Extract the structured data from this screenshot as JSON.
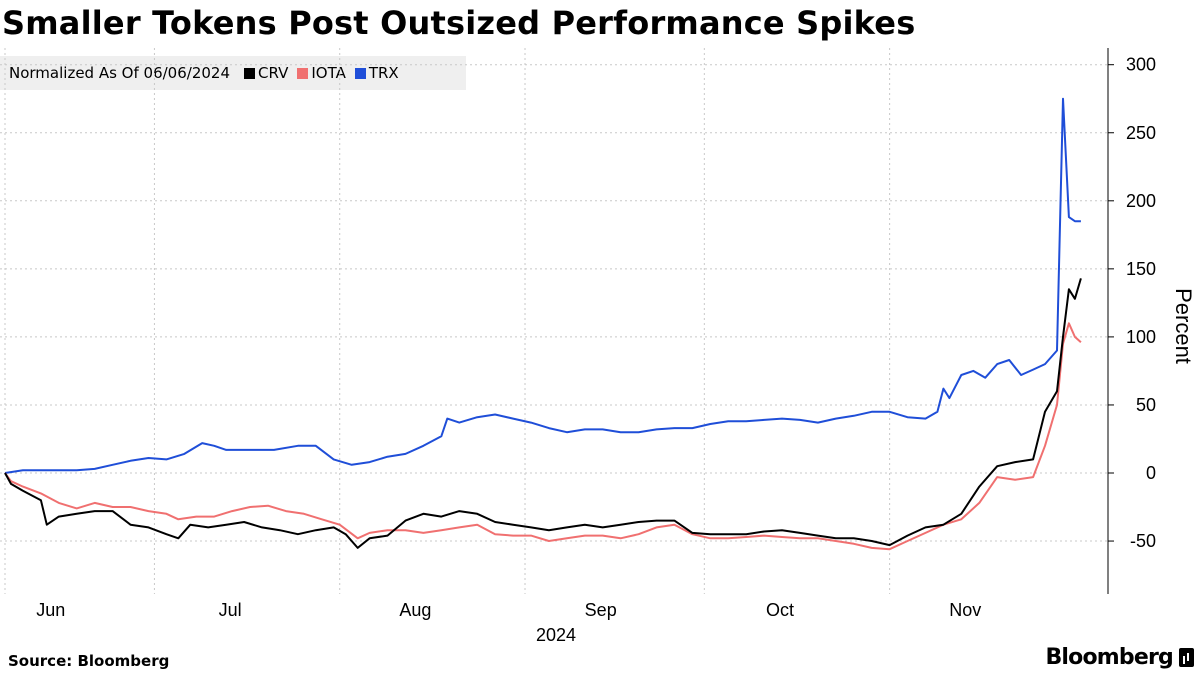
{
  "chart_data": {
    "type": "line",
    "title": "Smaller Tokens Post Outsized Performance Spikes",
    "subtitle": "Normalized As Of 06/06/2024",
    "ylabel": "Percent",
    "ylim": [
      -90,
      310
    ],
    "yticks": [
      -50,
      0,
      50,
      100,
      150,
      200,
      250,
      300
    ],
    "xlim": [
      "2024-06-06",
      "2024-11-27"
    ],
    "month_ticks": [
      {
        "label": "Jun",
        "date": "2024-06-15"
      },
      {
        "label": "Jul",
        "date": "2024-07-15"
      },
      {
        "label": "Aug",
        "date": "2024-08-15"
      },
      {
        "label": "Sep",
        "date": "2024-09-15"
      },
      {
        "label": "Oct",
        "date": "2024-10-15"
      },
      {
        "label": "Nov",
        "date": "2024-11-15"
      }
    ],
    "gridlines": [
      "2024-06-06",
      "2024-07-01",
      "2024-08-01",
      "2024-09-01",
      "2024-10-01",
      "2024-11-01"
    ],
    "year_label": "2024",
    "grid": true,
    "series": [
      {
        "name": "TRX",
        "color": "#1f4ed8",
        "points": [
          [
            "2024-06-06",
            0
          ],
          [
            "2024-06-09",
            2
          ],
          [
            "2024-06-12",
            2
          ],
          [
            "2024-06-15",
            2
          ],
          [
            "2024-06-18",
            2
          ],
          [
            "2024-06-21",
            3
          ],
          [
            "2024-06-24",
            6
          ],
          [
            "2024-06-27",
            9
          ],
          [
            "2024-06-30",
            11
          ],
          [
            "2024-07-03",
            10
          ],
          [
            "2024-07-06",
            14
          ],
          [
            "2024-07-09",
            22
          ],
          [
            "2024-07-11",
            20
          ],
          [
            "2024-07-13",
            17
          ],
          [
            "2024-07-17",
            17
          ],
          [
            "2024-07-21",
            17
          ],
          [
            "2024-07-25",
            20
          ],
          [
            "2024-07-28",
            20
          ],
          [
            "2024-07-31",
            10
          ],
          [
            "2024-08-03",
            6
          ],
          [
            "2024-08-06",
            8
          ],
          [
            "2024-08-09",
            12
          ],
          [
            "2024-08-12",
            14
          ],
          [
            "2024-08-15",
            20
          ],
          [
            "2024-08-18",
            27
          ],
          [
            "2024-08-19",
            40
          ],
          [
            "2024-08-21",
            37
          ],
          [
            "2024-08-24",
            41
          ],
          [
            "2024-08-27",
            43
          ],
          [
            "2024-08-30",
            40
          ],
          [
            "2024-09-02",
            37
          ],
          [
            "2024-09-05",
            33
          ],
          [
            "2024-09-08",
            30
          ],
          [
            "2024-09-11",
            32
          ],
          [
            "2024-09-14",
            32
          ],
          [
            "2024-09-17",
            30
          ],
          [
            "2024-09-20",
            30
          ],
          [
            "2024-09-23",
            32
          ],
          [
            "2024-09-26",
            33
          ],
          [
            "2024-09-29",
            33
          ],
          [
            "2024-10-02",
            36
          ],
          [
            "2024-10-05",
            38
          ],
          [
            "2024-10-08",
            38
          ],
          [
            "2024-10-11",
            39
          ],
          [
            "2024-10-14",
            40
          ],
          [
            "2024-10-17",
            39
          ],
          [
            "2024-10-20",
            37
          ],
          [
            "2024-10-23",
            40
          ],
          [
            "2024-10-26",
            42
          ],
          [
            "2024-10-29",
            45
          ],
          [
            "2024-11-01",
            45
          ],
          [
            "2024-11-04",
            41
          ],
          [
            "2024-11-07",
            40
          ],
          [
            "2024-11-09",
            45
          ],
          [
            "2024-11-10",
            62
          ],
          [
            "2024-11-11",
            55
          ],
          [
            "2024-11-13",
            72
          ],
          [
            "2024-11-15",
            75
          ],
          [
            "2024-11-17",
            70
          ],
          [
            "2024-11-19",
            80
          ],
          [
            "2024-11-21",
            83
          ],
          [
            "2024-11-23",
            72
          ],
          [
            "2024-11-25",
            76
          ],
          [
            "2024-11-27",
            80
          ],
          [
            "2024-11-29",
            90
          ],
          [
            "2024-11-30",
            275
          ],
          [
            "2024-12-01",
            188
          ],
          [
            "2024-12-02",
            185
          ],
          [
            "2024-12-03",
            185
          ]
        ]
      },
      {
        "name": "CRV",
        "color": "#000000",
        "points": [
          [
            "2024-06-06",
            0
          ],
          [
            "2024-06-07",
            -8
          ],
          [
            "2024-06-09",
            -13
          ],
          [
            "2024-06-12",
            -20
          ],
          [
            "2024-06-13",
            -38
          ],
          [
            "2024-06-15",
            -32
          ],
          [
            "2024-06-18",
            -30
          ],
          [
            "2024-06-21",
            -28
          ],
          [
            "2024-06-24",
            -28
          ],
          [
            "2024-06-27",
            -38
          ],
          [
            "2024-06-30",
            -40
          ],
          [
            "2024-07-03",
            -45
          ],
          [
            "2024-07-05",
            -48
          ],
          [
            "2024-07-07",
            -38
          ],
          [
            "2024-07-10",
            -40
          ],
          [
            "2024-07-13",
            -38
          ],
          [
            "2024-07-16",
            -36
          ],
          [
            "2024-07-19",
            -40
          ],
          [
            "2024-07-22",
            -42
          ],
          [
            "2024-07-25",
            -45
          ],
          [
            "2024-07-28",
            -42
          ],
          [
            "2024-07-31",
            -40
          ],
          [
            "2024-08-02",
            -45
          ],
          [
            "2024-08-04",
            -55
          ],
          [
            "2024-08-06",
            -48
          ],
          [
            "2024-08-09",
            -46
          ],
          [
            "2024-08-12",
            -35
          ],
          [
            "2024-08-15",
            -30
          ],
          [
            "2024-08-18",
            -32
          ],
          [
            "2024-08-21",
            -28
          ],
          [
            "2024-08-24",
            -30
          ],
          [
            "2024-08-27",
            -36
          ],
          [
            "2024-08-30",
            -38
          ],
          [
            "2024-09-02",
            -40
          ],
          [
            "2024-09-05",
            -42
          ],
          [
            "2024-09-08",
            -40
          ],
          [
            "2024-09-11",
            -38
          ],
          [
            "2024-09-14",
            -40
          ],
          [
            "2024-09-17",
            -38
          ],
          [
            "2024-09-20",
            -36
          ],
          [
            "2024-09-23",
            -35
          ],
          [
            "2024-09-26",
            -35
          ],
          [
            "2024-09-29",
            -44
          ],
          [
            "2024-10-02",
            -45
          ],
          [
            "2024-10-05",
            -45
          ],
          [
            "2024-10-08",
            -45
          ],
          [
            "2024-10-11",
            -43
          ],
          [
            "2024-10-14",
            -42
          ],
          [
            "2024-10-17",
            -44
          ],
          [
            "2024-10-20",
            -46
          ],
          [
            "2024-10-23",
            -48
          ],
          [
            "2024-10-26",
            -48
          ],
          [
            "2024-10-29",
            -50
          ],
          [
            "2024-11-01",
            -53
          ],
          [
            "2024-11-04",
            -46
          ],
          [
            "2024-11-07",
            -40
          ],
          [
            "2024-11-10",
            -38
          ],
          [
            "2024-11-13",
            -30
          ],
          [
            "2024-11-16",
            -10
          ],
          [
            "2024-11-19",
            5
          ],
          [
            "2024-11-22",
            8
          ],
          [
            "2024-11-25",
            10
          ],
          [
            "2024-11-27",
            45
          ],
          [
            "2024-11-29",
            60
          ],
          [
            "2024-11-30",
            100
          ],
          [
            "2024-12-01",
            135
          ],
          [
            "2024-12-02",
            128
          ],
          [
            "2024-12-03",
            143
          ]
        ]
      },
      {
        "name": "IOTA",
        "color": "#f07070",
        "points": [
          [
            "2024-06-06",
            0
          ],
          [
            "2024-06-07",
            -6
          ],
          [
            "2024-06-09",
            -10
          ],
          [
            "2024-06-12",
            -15
          ],
          [
            "2024-06-15",
            -22
          ],
          [
            "2024-06-18",
            -26
          ],
          [
            "2024-06-21",
            -22
          ],
          [
            "2024-06-24",
            -25
          ],
          [
            "2024-06-27",
            -25
          ],
          [
            "2024-06-30",
            -28
          ],
          [
            "2024-07-03",
            -30
          ],
          [
            "2024-07-05",
            -34
          ],
          [
            "2024-07-08",
            -32
          ],
          [
            "2024-07-11",
            -32
          ],
          [
            "2024-07-14",
            -28
          ],
          [
            "2024-07-17",
            -25
          ],
          [
            "2024-07-20",
            -24
          ],
          [
            "2024-07-23",
            -28
          ],
          [
            "2024-07-26",
            -30
          ],
          [
            "2024-07-29",
            -34
          ],
          [
            "2024-08-01",
            -38
          ],
          [
            "2024-08-04",
            -48
          ],
          [
            "2024-08-06",
            -44
          ],
          [
            "2024-08-09",
            -42
          ],
          [
            "2024-08-12",
            -42
          ],
          [
            "2024-08-15",
            -44
          ],
          [
            "2024-08-18",
            -42
          ],
          [
            "2024-08-21",
            -40
          ],
          [
            "2024-08-24",
            -38
          ],
          [
            "2024-08-27",
            -45
          ],
          [
            "2024-08-30",
            -46
          ],
          [
            "2024-09-02",
            -46
          ],
          [
            "2024-09-05",
            -50
          ],
          [
            "2024-09-08",
            -48
          ],
          [
            "2024-09-11",
            -46
          ],
          [
            "2024-09-14",
            -46
          ],
          [
            "2024-09-17",
            -48
          ],
          [
            "2024-09-20",
            -45
          ],
          [
            "2024-09-23",
            -40
          ],
          [
            "2024-09-26",
            -38
          ],
          [
            "2024-09-29",
            -45
          ],
          [
            "2024-10-02",
            -48
          ],
          [
            "2024-10-05",
            -48
          ],
          [
            "2024-10-08",
            -47
          ],
          [
            "2024-10-11",
            -46
          ],
          [
            "2024-10-14",
            -47
          ],
          [
            "2024-10-17",
            -48
          ],
          [
            "2024-10-20",
            -48
          ],
          [
            "2024-10-23",
            -50
          ],
          [
            "2024-10-26",
            -52
          ],
          [
            "2024-10-29",
            -55
          ],
          [
            "2024-11-01",
            -56
          ],
          [
            "2024-11-04",
            -50
          ],
          [
            "2024-11-07",
            -44
          ],
          [
            "2024-11-10",
            -38
          ],
          [
            "2024-11-13",
            -34
          ],
          [
            "2024-11-16",
            -22
          ],
          [
            "2024-11-19",
            -3
          ],
          [
            "2024-11-22",
            -5
          ],
          [
            "2024-11-25",
            -3
          ],
          [
            "2024-11-27",
            20
          ],
          [
            "2024-11-29",
            50
          ],
          [
            "2024-11-30",
            95
          ],
          [
            "2024-12-01",
            110
          ],
          [
            "2024-12-02",
            100
          ],
          [
            "2024-12-03",
            96
          ]
        ]
      }
    ]
  },
  "footer": {
    "source": "Source: Bloomberg",
    "brand": "Bloomberg"
  }
}
